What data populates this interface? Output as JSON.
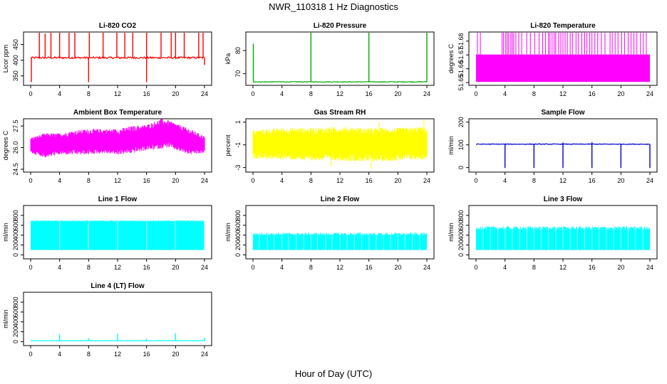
{
  "page": {
    "title": "NWR_110318  1 Hz Diagnostics",
    "xlabel": "Hour of Day (UTC)"
  },
  "chart_data": [
    {
      "type": "line",
      "title": "Li-820 CO2",
      "ylabel": "Licor ppm",
      "color": "#ff0000",
      "xlim": [
        0,
        24
      ],
      "xticks": [
        0,
        4,
        8,
        12,
        16,
        20,
        24
      ],
      "ylim": [
        320,
        490
      ],
      "yticks": [
        350,
        400,
        450
      ],
      "ytick_labels": [
        "350",
        "400",
        "450"
      ],
      "baseline": 408,
      "spikes_up": [
        [
          1.2,
          490
        ],
        [
          2.0,
          485
        ],
        [
          2.8,
          490
        ],
        [
          4.0,
          490
        ],
        [
          5.3,
          490
        ],
        [
          6.1,
          490
        ],
        [
          8.1,
          490
        ],
        [
          10.0,
          490
        ],
        [
          11.9,
          490
        ],
        [
          13.0,
          490
        ],
        [
          14.1,
          490
        ],
        [
          16.0,
          490
        ],
        [
          18.0,
          490
        ],
        [
          19.4,
          490
        ],
        [
          20.0,
          490
        ],
        [
          21.2,
          490
        ],
        [
          23.2,
          490
        ],
        [
          23.8,
          490
        ]
      ],
      "spikes_down": [
        [
          0.1,
          330
        ],
        [
          8.0,
          330
        ],
        [
          16.0,
          330
        ],
        [
          24.0,
          385
        ]
      ],
      "noise": 3
    },
    {
      "type": "line",
      "title": "Li-820 Pressure",
      "ylabel": "kPa",
      "color": "#00aa00",
      "xlim": [
        0,
        24
      ],
      "xticks": [
        0,
        4,
        8,
        12,
        16,
        20,
        24
      ],
      "ylim": [
        65,
        88
      ],
      "yticks": [
        70,
        80
      ],
      "ytick_labels": [
        "70",
        "80"
      ],
      "baseline": 66.5,
      "spikes_up": [
        [
          0.05,
          83
        ],
        [
          8.0,
          88
        ],
        [
          16.0,
          88
        ],
        [
          24.0,
          88
        ]
      ],
      "spikes_down": [],
      "noise": 0.15
    },
    {
      "type": "line",
      "title": "Li-820 Temperature",
      "ylabel": "degrees C",
      "color": "#ff00ff",
      "xlim": [
        0,
        24
      ],
      "xticks": [
        0,
        4,
        8,
        12,
        16,
        20,
        24
      ],
      "ylim": [
        51.648,
        51.6866
      ],
      "yticks": [
        51.65,
        51.66,
        51.67,
        51.68
      ],
      "ytick_labels": [
        "51.65",
        "51.66",
        "51.67",
        "51.68"
      ],
      "band": [
        51.6505,
        51.6703
      ],
      "spike_top": 51.6866,
      "spike_times": [
        0.2,
        0.6,
        3.6,
        3.8,
        4.1,
        4.3,
        4.5,
        4.8,
        5.0,
        5.2,
        5.5,
        5.9,
        6.3,
        7.0,
        7.5,
        8.1,
        8.7,
        9.2,
        9.6,
        10.0,
        10.2,
        10.5,
        10.8,
        11.0,
        11.4,
        11.7,
        12.0,
        12.3,
        12.6,
        13.0,
        13.3,
        13.8,
        14.1,
        14.6,
        15.0,
        15.3,
        15.7,
        16.0,
        16.4,
        16.8,
        17.3,
        17.8,
        18.5,
        18.8,
        19.2,
        19.6,
        20.1,
        20.5,
        21.0,
        21.4,
        21.8,
        22.2,
        22.7,
        23.1,
        23.5
      ]
    },
    {
      "type": "line",
      "title": "Ambient Box Temperature",
      "ylabel": "degrees C",
      "color": "#ff00ff",
      "xlim": [
        0,
        24
      ],
      "xticks": [
        0,
        4,
        8,
        12,
        16,
        20,
        24
      ],
      "ylim": [
        24.3,
        28.0
      ],
      "yticks": [
        24.5,
        26.0,
        27.5
      ],
      "ytick_labels": [
        "24.5",
        "26.0",
        "27.5"
      ],
      "envelope": [
        [
          0,
          25.6,
          26.7
        ],
        [
          2,
          25.3,
          27.0
        ],
        [
          4,
          25.5,
          27.0
        ],
        [
          6,
          25.5,
          27.2
        ],
        [
          8,
          25.5,
          27.3
        ],
        [
          10,
          25.6,
          27.3
        ],
        [
          12,
          25.5,
          27.3
        ],
        [
          14,
          25.6,
          27.5
        ],
        [
          16,
          25.8,
          27.6
        ],
        [
          18,
          25.9,
          28.0
        ],
        [
          19,
          26.0,
          27.9
        ],
        [
          20,
          25.8,
          27.7
        ],
        [
          22,
          25.5,
          27.3
        ],
        [
          24,
          25.6,
          26.8
        ]
      ]
    },
    {
      "type": "line",
      "title": "Gas Stream RH",
      "ylabel": "percent",
      "color": "#ffff00",
      "xlim": [
        0,
        24
      ],
      "xticks": [
        0,
        4,
        8,
        12,
        16,
        20,
        24
      ],
      "ylim": [
        -3.4,
        1.3
      ],
      "yticks": [
        -3,
        -1,
        1
      ],
      "ytick_labels": [
        "-3",
        "-1",
        "1"
      ],
      "envelope": [
        [
          0,
          -2.2,
          0.3
        ],
        [
          4,
          -2.3,
          0.5
        ],
        [
          8,
          -2.4,
          0.5
        ],
        [
          12,
          -2.4,
          0.6
        ],
        [
          16,
          -2.5,
          0.5
        ],
        [
          20,
          -2.4,
          0.5
        ],
        [
          24,
          -2.3,
          0.6
        ]
      ],
      "extremes": [
        [
          10.8,
          -2.9
        ],
        [
          16.3,
          -3.1
        ],
        [
          17.4,
          1.0
        ],
        [
          23.6,
          1.2
        ]
      ]
    },
    {
      "type": "line",
      "title": "Sample Flow",
      "ylabel": "ml/min",
      "color": "#0000cc",
      "xlim": [
        0,
        24
      ],
      "xticks": [
        0,
        4,
        8,
        12,
        16,
        20,
        24
      ],
      "ylim": [
        -20,
        215
      ],
      "yticks": [
        0,
        100,
        200
      ],
      "ytick_labels": [
        "0",
        "100",
        "200"
      ],
      "baseline": 103,
      "spikes_up": [
        [
          12.0,
          110
        ],
        [
          16.0,
          112
        ]
      ],
      "spikes_down": [
        [
          4.0,
          -2
        ],
        [
          8.0,
          -2
        ],
        [
          12.0,
          -2
        ],
        [
          16.0,
          -2
        ],
        [
          20.0,
          -2
        ],
        [
          24.0,
          -2
        ]
      ],
      "noise": 1.5
    },
    {
      "type": "line",
      "title": "Line 1 Flow",
      "ylabel": "ml/min",
      "color": "#00ffff",
      "xlim": [
        0,
        24
      ],
      "xticks": [
        0,
        4,
        8,
        12,
        16,
        20,
        24
      ],
      "ylim": [
        -80,
        1000
      ],
      "yticks": [
        0,
        200,
        400,
        600,
        800
      ],
      "ytick_labels": [
        "0",
        "200",
        "400",
        "600",
        "800"
      ],
      "band": [
        100,
        680
      ],
      "band_top_edge": 700,
      "gaps": [
        4.0,
        8.0,
        12.0,
        16.0,
        20.0,
        24.0
      ],
      "gap_width": 0.12
    },
    {
      "type": "line",
      "title": "Line 2 Flow",
      "ylabel": "ml/min",
      "color": "#00ffff",
      "xlim": [
        0,
        24
      ],
      "xticks": [
        0,
        4,
        8,
        12,
        16,
        20,
        24
      ],
      "ylim": [
        -80,
        1000
      ],
      "yticks": [
        0,
        200,
        400,
        600,
        800
      ],
      "ytick_labels": [
        "0",
        "200",
        "400",
        "600",
        "800"
      ],
      "band": [
        100,
        400
      ],
      "band_top_edge": 450,
      "gaps": [
        0.9,
        2.0,
        2.9,
        4.0,
        4.9,
        6.0,
        7.0,
        8.0,
        8.9,
        10.0,
        10.9,
        12.0,
        13.0,
        14.0,
        15.0,
        16.0,
        17.0,
        18.0,
        19.0,
        20.0,
        21.0,
        22.0,
        23.0
      ],
      "gap_width": 0.1
    },
    {
      "type": "line",
      "title": "Line 3 Flow",
      "ylabel": "ml/min",
      "color": "#00ffff",
      "xlim": [
        0,
        24
      ],
      "xticks": [
        0,
        4,
        8,
        12,
        16,
        20,
        24
      ],
      "ylim": [
        -80,
        1000
      ],
      "yticks": [
        0,
        200,
        400,
        600,
        800
      ],
      "ytick_labels": [
        "0",
        "200",
        "400",
        "600",
        "800"
      ],
      "band": [
        100,
        520
      ],
      "band_top_edge": 580,
      "gaps": [
        1.0,
        2.0,
        3.0,
        4.0,
        5.0,
        6.0,
        7.0,
        8.0,
        9.0,
        10.0,
        11.0,
        12.0,
        13.0,
        14.0,
        15.0,
        16.0,
        17.0,
        18.0,
        19.0,
        20.0,
        21.0,
        22.0,
        23.0
      ],
      "gap_width": 0.1
    },
    {
      "type": "line",
      "title": "Line 4 (LT) Flow",
      "ylabel": "ml/min",
      "color": "#00ffff",
      "xlim": [
        0,
        24
      ],
      "xticks": [
        0,
        4,
        8,
        12,
        16,
        20,
        24
      ],
      "ylim": [
        -80,
        1000
      ],
      "yticks": [
        0,
        200,
        400,
        600,
        800
      ],
      "ytick_labels": [
        "0",
        "200",
        "400",
        "600",
        "800"
      ],
      "baseline": 20,
      "spikes_up": [
        [
          4.0,
          150
        ],
        [
          8.0,
          70
        ],
        [
          12.0,
          160
        ],
        [
          16.0,
          60
        ],
        [
          20.0,
          170
        ],
        [
          24.0,
          80
        ]
      ],
      "spikes_down": [],
      "noise": 4
    }
  ]
}
